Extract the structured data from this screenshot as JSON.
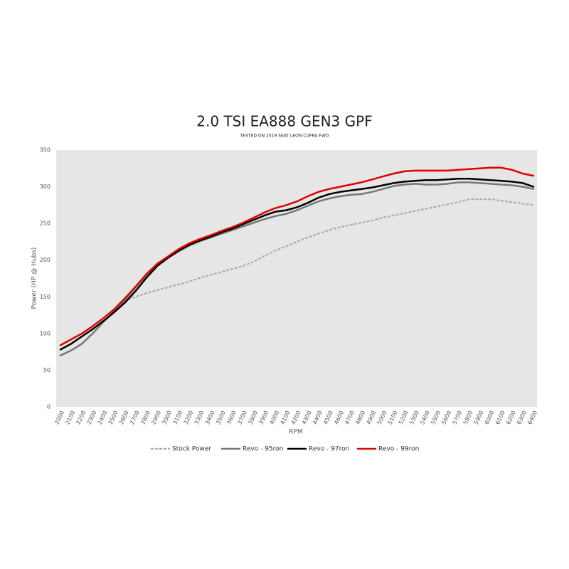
{
  "chart_data": {
    "type": "line",
    "title": "2.0 TSI EA888 GEN3 GPF",
    "subtitle": "TESTED ON 2019 SEAT LEON CUPRA FWD",
    "x_label": "RPM",
    "y_label": "Power (HP @ Hubs)",
    "x": [
      2000,
      2100,
      2200,
      2300,
      2400,
      2500,
      2600,
      2700,
      2800,
      2900,
      3000,
      3100,
      3200,
      3300,
      3400,
      3500,
      3600,
      3700,
      3800,
      3900,
      4000,
      4100,
      4200,
      4300,
      4400,
      4500,
      4600,
      4700,
      4800,
      4900,
      5000,
      5100,
      5200,
      5300,
      5400,
      5500,
      5600,
      5700,
      5800,
      5900,
      6000,
      6100,
      6200,
      6300,
      6400
    ],
    "xlim": [
      2000,
      6400
    ],
    "xticks": [
      2000,
      2100,
      2200,
      2300,
      2400,
      2500,
      2600,
      2700,
      2800,
      2900,
      3000,
      3100,
      3200,
      3300,
      3400,
      3500,
      3600,
      3700,
      3800,
      3900,
      4000,
      4100,
      4200,
      4300,
      4400,
      4500,
      4600,
      4700,
      4800,
      4900,
      5000,
      5100,
      5200,
      5300,
      5400,
      5500,
      5600,
      5700,
      5800,
      5900,
      6000,
      6100,
      6200,
      6300,
      6400
    ],
    "ylim": [
      0,
      350
    ],
    "yticks": [
      0,
      50,
      100,
      150,
      200,
      250,
      300,
      350
    ],
    "series": [
      {
        "name": "Stock Power",
        "color": "#aaaaaa",
        "style": "dotted",
        "values": [
          70,
          77,
          86,
          100,
          116,
          130,
          145,
          150,
          155,
          159,
          163,
          167,
          171,
          176,
          180,
          184,
          188,
          192,
          198,
          206,
          213,
          219,
          225,
          231,
          236,
          241,
          245,
          248,
          251,
          254,
          258,
          261,
          264,
          267,
          270,
          273,
          276,
          279,
          283,
          283,
          283,
          281,
          279,
          277,
          275
        ]
      },
      {
        "name": "Revo - 95ron",
        "color": "#777777",
        "style": "solid",
        "values": [
          70,
          77,
          86,
          100,
          116,
          130,
          146,
          163,
          180,
          193,
          203,
          212,
          220,
          226,
          231,
          236,
          241,
          246,
          251,
          256,
          260,
          263,
          268,
          274,
          280,
          284,
          287,
          289,
          290,
          293,
          297,
          301,
          303,
          304,
          303,
          303,
          304,
          306,
          306,
          305,
          304,
          303,
          302,
          300,
          297
        ]
      },
      {
        "name": "Revo - 97ron",
        "color": "#000000",
        "style": "solid",
        "values": [
          78,
          86,
          96,
          106,
          117,
          129,
          142,
          158,
          176,
          192,
          203,
          213,
          221,
          227,
          232,
          238,
          243,
          249,
          255,
          261,
          266,
          268,
          272,
          278,
          285,
          290,
          293,
          295,
          297,
          299,
          302,
          305,
          307,
          308,
          309,
          309,
          310,
          311,
          311,
          310,
          309,
          308,
          307,
          305,
          300
        ]
      },
      {
        "name": "Revo - 99ron",
        "color": "#e00000",
        "style": "solid",
        "values": [
          84,
          92,
          100,
          110,
          121,
          133,
          148,
          164,
          181,
          195,
          205,
          215,
          223,
          229,
          234,
          240,
          245,
          251,
          258,
          265,
          271,
          275,
          280,
          287,
          293,
          297,
          300,
          303,
          306,
          310,
          314,
          318,
          321,
          322,
          322,
          322,
          322,
          323,
          324,
          325,
          326,
          326,
          323,
          318,
          315
        ]
      }
    ]
  }
}
